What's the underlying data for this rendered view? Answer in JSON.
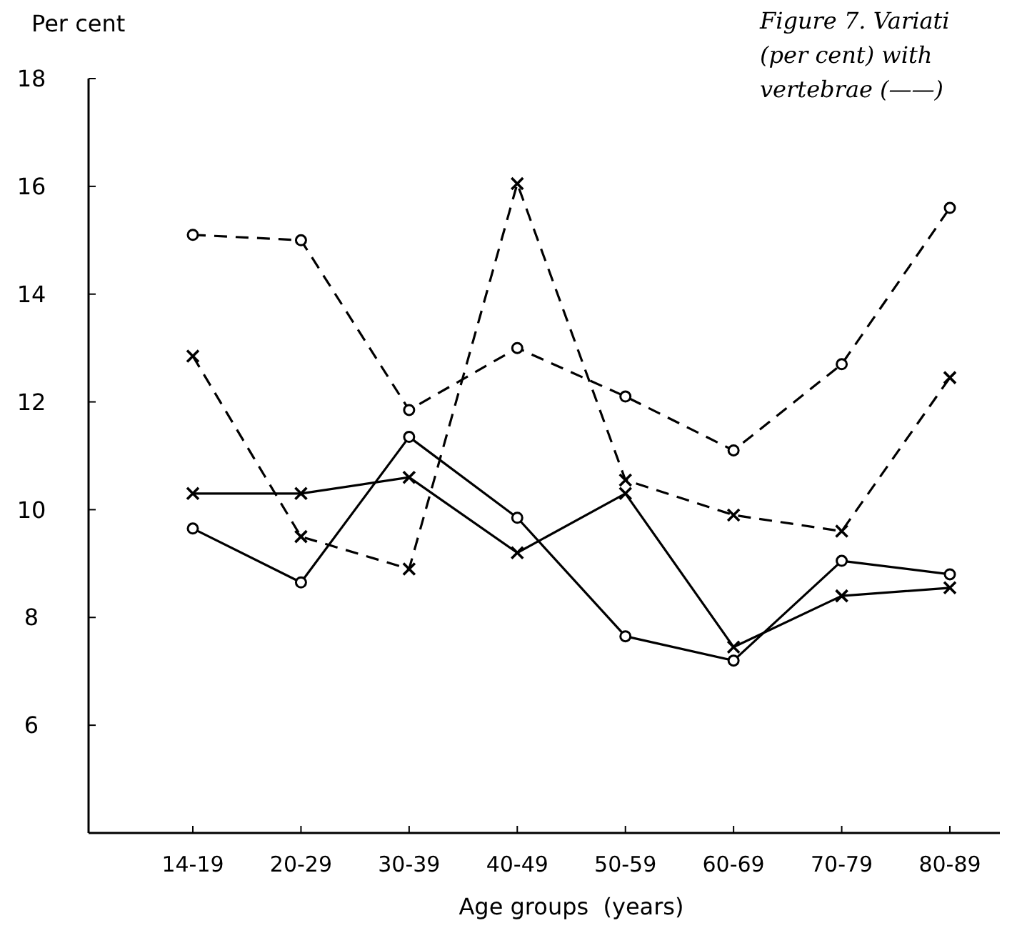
{
  "chart_data": {
    "type": "line",
    "ylabel": "Per cent",
    "xlabel": "Age groups  (years)",
    "annotations": [
      "Figure 7. Variati",
      "(per cent) with",
      "vertebrae (——)"
    ],
    "categories": [
      "14-19",
      "20-29",
      "30-39",
      "40-49",
      "50-59",
      "60-69",
      "70-79",
      "80-89"
    ],
    "ylim": [
      4,
      18
    ],
    "yticks": [
      {
        "value": 4,
        "label": null
      },
      6,
      8,
      10,
      12,
      14,
      16,
      18
    ],
    "series": [
      {
        "color": "#000000",
        "marker": "circle",
        "line_style": "dashed",
        "values": [
          15.1,
          15.0,
          11.85,
          13.0,
          12.1,
          11.1,
          12.7,
          15.6
        ]
      },
      {
        "color": "#000000",
        "marker": "cross",
        "line_style": "dashed",
        "values": [
          12.85,
          9.5,
          8.9,
          16.05,
          10.55,
          9.9,
          9.6,
          12.45
        ]
      },
      {
        "color": "#000000",
        "marker": "circle",
        "line_style": "solid",
        "values": [
          9.65,
          8.65,
          11.35,
          9.85,
          7.65,
          7.2,
          9.05,
          8.8
        ]
      },
      {
        "color": "#000000",
        "marker": "cross",
        "line_style": "solid",
        "values": [
          10.3,
          10.3,
          10.6,
          9.2,
          10.3,
          7.45,
          8.4,
          8.55
        ]
      }
    ]
  }
}
